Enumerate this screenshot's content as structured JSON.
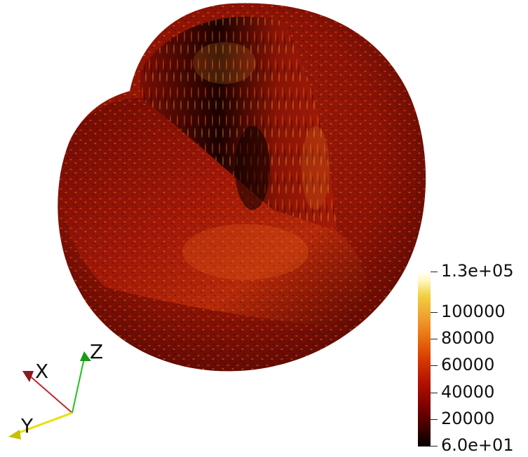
{
  "colorbar": {
    "tick_labels": [
      "1.3e+05",
      "100000",
      "80000",
      "60000",
      "40000",
      "20000",
      "6.0e+01"
    ],
    "max": 130000,
    "min": 60,
    "colormap": "black-body (black-red-orange-yellow-white)"
  },
  "axes": {
    "x_label": "X",
    "y_label": "Y",
    "z_label": "Z",
    "x_color": "#c0262d",
    "y_color": "#e8e000",
    "z_color": "#22c020"
  },
  "render": {
    "shape": "sphere with wedge cut-out showing interior",
    "base_color": "#8c1006",
    "highlight_color": "#ffcc33"
  }
}
